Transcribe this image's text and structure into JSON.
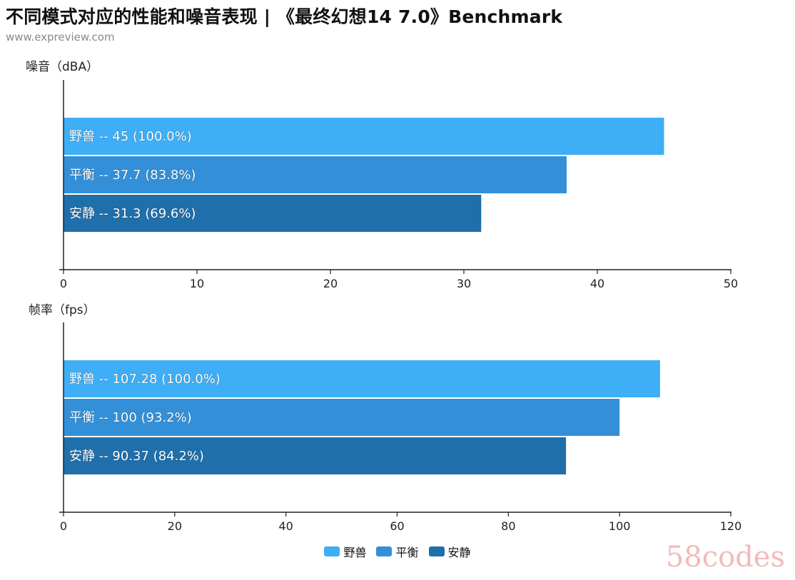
{
  "title": "不同模式对应的性能和噪音表现 | 《最终幻想14 7.0》Benchmark",
  "subtitle": "www.expreview.com",
  "watermark": "58codes",
  "colors": {
    "野兽": "#3eaef6",
    "平衡": "#3390d8",
    "安静": "#1f6fab"
  },
  "legend": [
    {
      "name": "野兽",
      "color": "#3eaef6"
    },
    {
      "name": "平衡",
      "color": "#3390d8"
    },
    {
      "name": "安静",
      "color": "#1f6fab"
    }
  ],
  "chart_data": [
    {
      "type": "bar",
      "orientation": "horizontal",
      "ylabel": "噪音（dBA）",
      "xlim": [
        0,
        50
      ],
      "xticks": [
        0,
        10,
        20,
        30,
        40,
        50
      ],
      "categories": [
        "野兽",
        "平衡",
        "安静"
      ],
      "values": [
        45,
        37.7,
        31.3
      ],
      "labels": [
        "野兽  --  45 (100.0%)",
        "平衡  --  37.7 (83.8%)",
        "安静  --  31.3 (69.6%)"
      ]
    },
    {
      "type": "bar",
      "orientation": "horizontal",
      "ylabel": "帧率（fps）",
      "xlim": [
        0,
        120
      ],
      "xticks": [
        0,
        20,
        40,
        60,
        80,
        100,
        120
      ],
      "categories": [
        "野兽",
        "平衡",
        "安静"
      ],
      "values": [
        107.28,
        100,
        90.37
      ],
      "labels": [
        "野兽  --  107.28 (100.0%)",
        "平衡  --  100 (93.2%)",
        "安静  --  90.37 (84.2%)"
      ]
    }
  ]
}
